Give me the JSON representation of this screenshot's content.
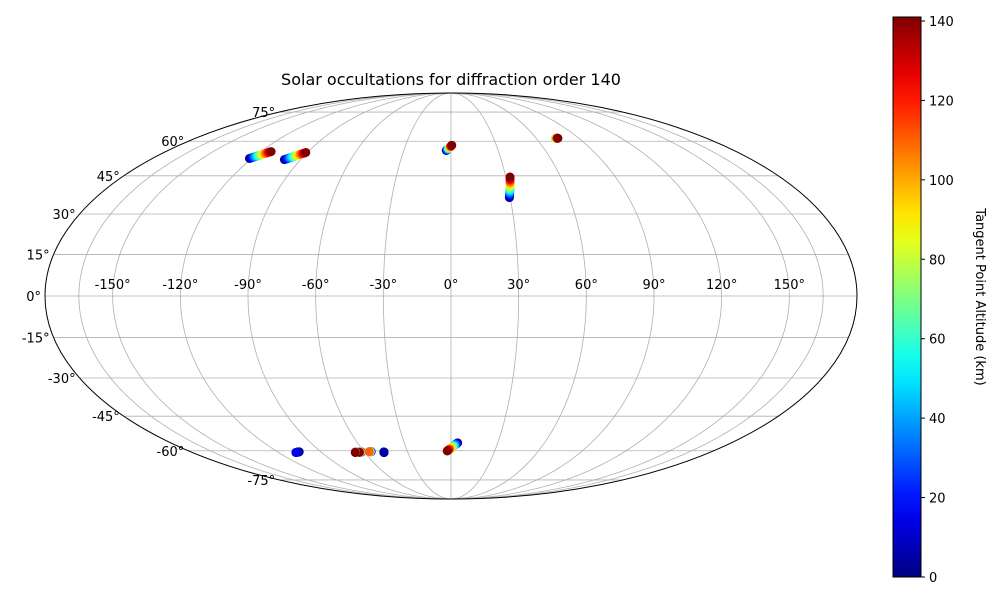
{
  "chart_data": {
    "type": "scatter",
    "projection": "mollweide",
    "title": "Solar occultations for diffraction order 140",
    "grid": true,
    "longitude_ticks": [
      -150,
      -120,
      -90,
      -60,
      -30,
      0,
      30,
      60,
      90,
      120,
      150
    ],
    "longitude_tick_labels": [
      "-150°",
      "-120°",
      "-90°",
      "-60°",
      "-30°",
      "0°",
      "30°",
      "60°",
      "90°",
      "120°",
      "150°"
    ],
    "latitude_ticks": [
      -75,
      -60,
      -45,
      -30,
      -15,
      0,
      15,
      30,
      45,
      60,
      75
    ],
    "latitude_tick_labels": [
      "-75°",
      "-60°",
      "-45°",
      "-30°",
      "-15°",
      "0°",
      "15°",
      "30°",
      "45°",
      "60°",
      "75°"
    ],
    "colorbar": {
      "label": "Tangent Point Altitude (km)",
      "colormap": "jet",
      "range": [
        0,
        141
      ],
      "ticks": [
        0,
        20,
        40,
        60,
        80,
        100,
        120,
        140
      ],
      "tick_labels": [
        "0",
        "20",
        "40",
        "60",
        "80",
        "100",
        "120",
        "140"
      ],
      "position": "right"
    },
    "tracks": [
      {
        "start": [
          -121.5,
          52.3
        ],
        "end": [
          -113.5,
          55.3
        ],
        "alt": [
          0,
          141
        ]
      },
      {
        "start": [
          -99.7,
          51.8
        ],
        "end": [
          -91.0,
          54.9
        ],
        "alt": [
          0,
          141
        ]
      },
      {
        "start": [
          -3.0,
          55.8
        ],
        "end": [
          0.5,
          58.1
        ],
        "alt": [
          0,
          141
        ]
      },
      {
        "start": [
          29.6,
          36.3
        ],
        "end": [
          32.3,
          44.5
        ],
        "alt": [
          0,
          141
        ]
      },
      {
        "start": [
          73.6,
          61.4
        ],
        "end": [
          75.3,
          61.4
        ],
        "alt": [
          60,
          141
        ]
      },
      {
        "start": [
          4.3,
          -56.4
        ],
        "end": [
          -2.6,
          -60.1
        ],
        "alt": [
          0,
          141
        ]
      },
      {
        "start": [
          -62.0,
          -60.6
        ],
        "end": [
          -63.8,
          -60.7
        ],
        "alt": [
          0,
          141
        ]
      },
      {
        "start": [
          -55.1,
          -60.4
        ],
        "end": [
          -56.5,
          -60.4
        ],
        "alt": [
          0,
          110
        ]
      },
      {
        "start": [
          -66.0,
          -60.5
        ],
        "end": [
          -66.6,
          -60.8
        ],
        "alt": [
          0,
          141
        ]
      },
      {
        "start": [
          -105.0,
          -60.5
        ],
        "end": [
          -108.0,
          -60.8
        ],
        "alt": [
          0,
          15
        ]
      },
      {
        "start": [
          -46.5,
          -60.6
        ],
        "end": [
          -46.6,
          -60.8
        ],
        "alt": [
          0,
          5
        ]
      }
    ]
  }
}
